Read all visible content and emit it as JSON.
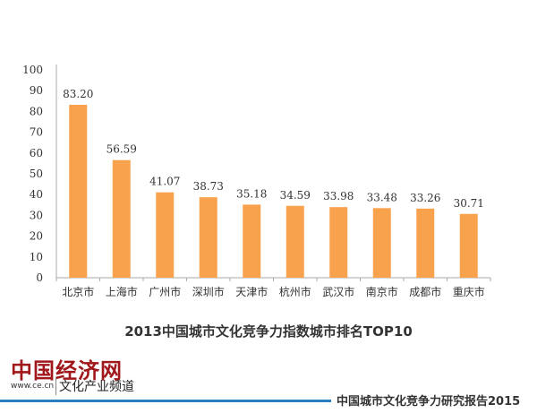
{
  "chart_data": {
    "type": "bar",
    "title": "2013中国城市文化竞争力指数城市排名TOP10",
    "categories": [
      "北京市",
      "上海市",
      "广州市",
      "深圳市",
      "天津市",
      "杭州市",
      "武汉市",
      "南京市",
      "成都市",
      "重庆市"
    ],
    "values": [
      83.2,
      56.59,
      41.07,
      38.73,
      35.18,
      34.59,
      33.98,
      33.48,
      33.26,
      30.71
    ],
    "value_labels": [
      "83.20",
      "56.59",
      "41.07",
      "38.73",
      "35.18",
      "34.59",
      "33.98",
      "33.48",
      "33.26",
      "30.71"
    ],
    "ylim": [
      0,
      100
    ],
    "yticks": [
      0,
      10,
      20,
      30,
      40,
      50,
      60,
      70,
      80,
      90,
      100
    ],
    "xlabel": "",
    "ylabel": "",
    "grid": false,
    "bar_color": "#f9a24e"
  },
  "footer": {
    "logo": "中国经济网",
    "site": "www.ce.cn",
    "channel": "文化产业频道",
    "report": "中国城市文化竞争力研究报告2015",
    "rule_color": "#2a7fc0"
  }
}
